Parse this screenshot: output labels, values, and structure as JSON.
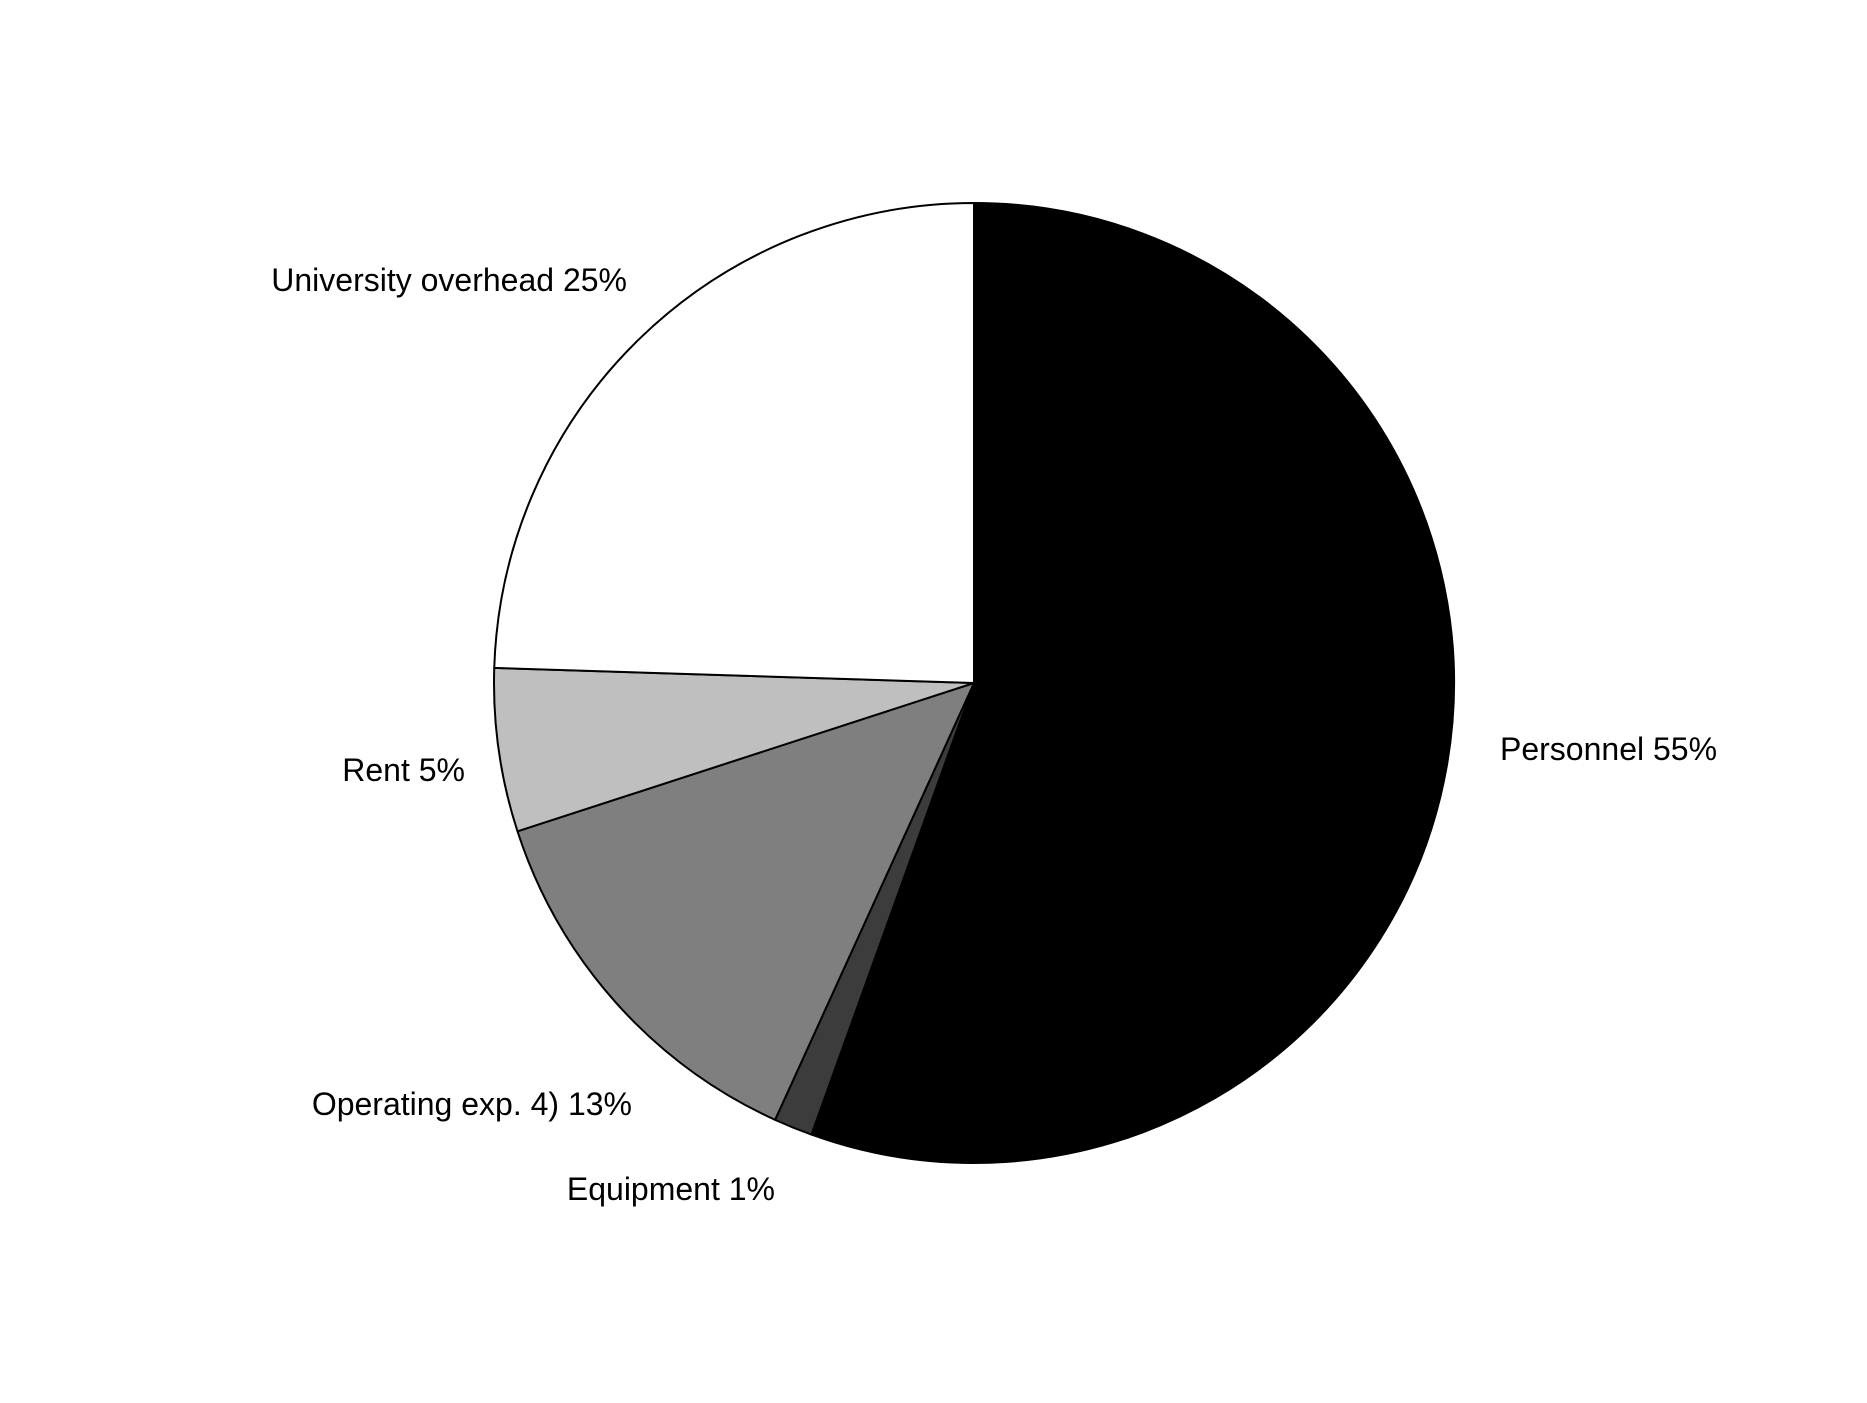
{
  "chart_data": {
    "type": "pie",
    "title": "",
    "start_angle_deg": 0,
    "direction": "clockwise",
    "slices": [
      {
        "label": "Personnel",
        "value": 55.5,
        "display": "Personnel 55%",
        "color": "#000000"
      },
      {
        "label": "Equipment",
        "value": 1.3,
        "display": "Equipment 1%",
        "color": "#3c3c3c"
      },
      {
        "label": "Operating exp. 4)",
        "value": 13.2,
        "display": "Operating exp. 4) 13%",
        "color": "#7f7f7f"
      },
      {
        "label": "Rent",
        "value": 5.5,
        "display": "Rent 5%",
        "color": "#bfbfbf"
      },
      {
        "label": "University overhead",
        "value": 24.5,
        "display": "University overhead 25%",
        "color": "#ffffff"
      }
    ]
  }
}
